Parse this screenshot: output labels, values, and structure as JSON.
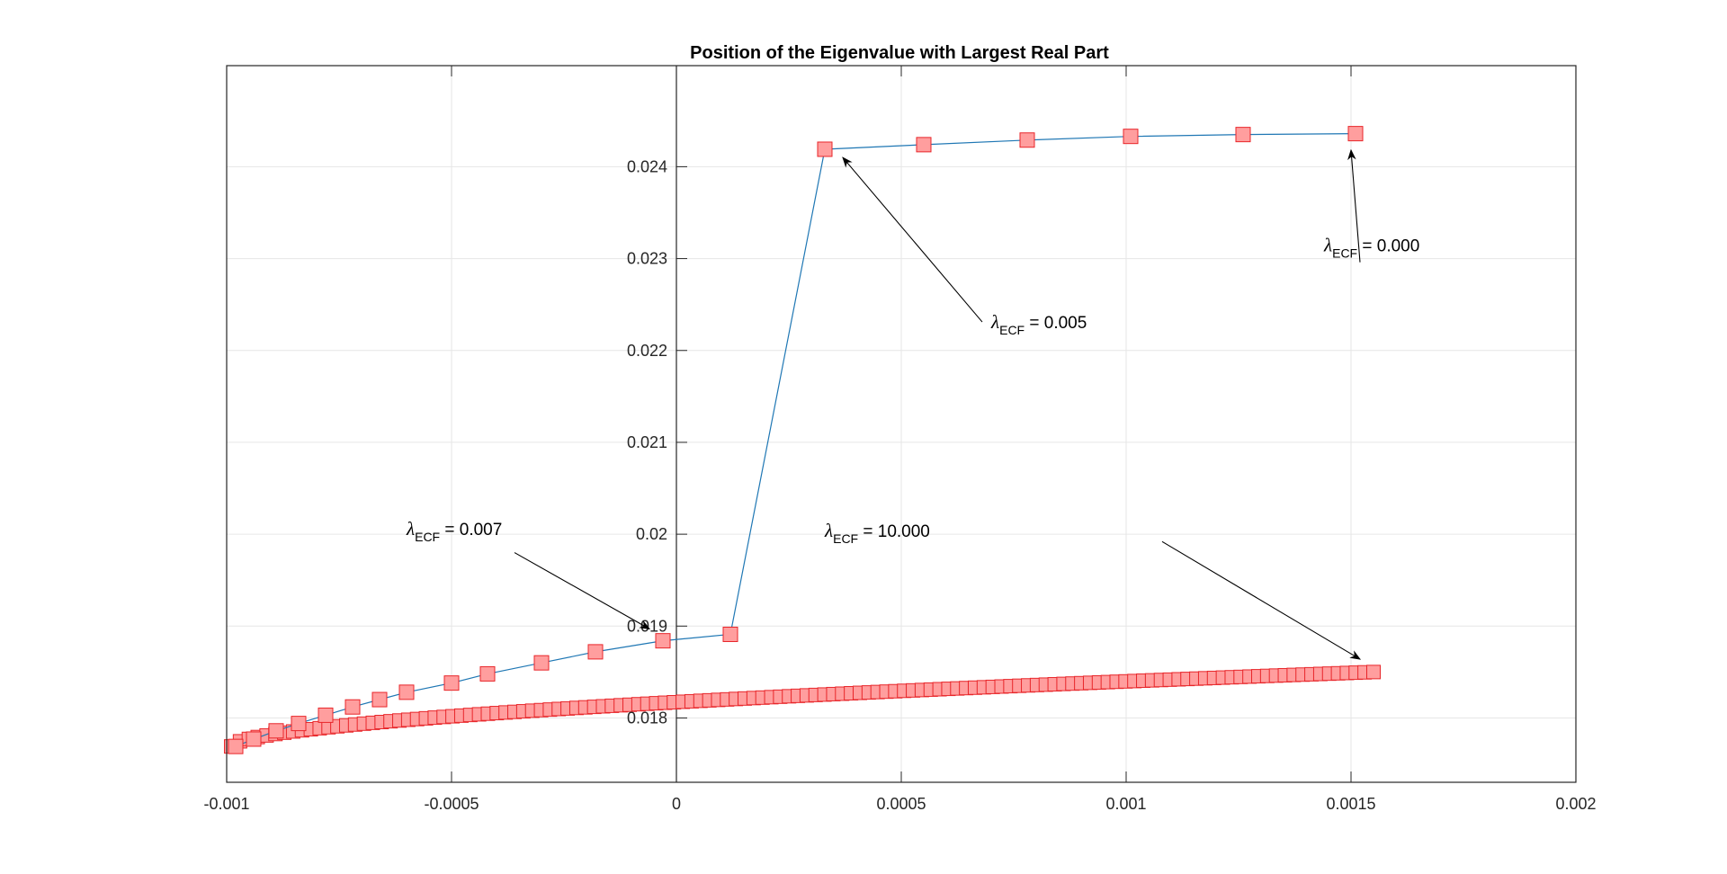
{
  "chart_data": {
    "type": "scatter",
    "title": "Position of the Eigenvalue with Largest Real Part",
    "xlabel": "",
    "ylabel": "",
    "xlim": [
      -0.001,
      0.002
    ],
    "ylim": [
      0.0173,
      0.0251
    ],
    "grid": true,
    "x_ticks": [
      -0.001,
      -0.0005,
      0,
      0.0005,
      0.001,
      0.0015,
      0.002
    ],
    "x_tick_labels": [
      "-0.001",
      "-0.0005",
      "0",
      "0.0005",
      "0.001",
      "0.0015",
      "0.002"
    ],
    "y_ticks": [
      0.018,
      0.019,
      0.02,
      0.021,
      0.022,
      0.023,
      0.024
    ],
    "y_tick_labels": [
      "0.018",
      "0.019",
      "0.02",
      "0.021",
      "0.022",
      "0.023",
      "0.024"
    ],
    "colors": {
      "marker_face": "#ff9e9e",
      "marker_edge": "#e8262a",
      "line": "#1f77b4",
      "axes": "#262626",
      "grid": "#e6e6e6"
    },
    "series": [
      {
        "values": [
          [
            -0.00098,
            0.01769
          ],
          [
            -0.00094,
            0.01777
          ],
          [
            -0.00089,
            0.01786
          ],
          [
            -0.00084,
            0.01794
          ],
          [
            -0.00078,
            0.01803
          ],
          [
            -0.00072,
            0.01812
          ],
          [
            -0.00066,
            0.0182
          ],
          [
            -0.0006,
            0.01828
          ],
          [
            -0.0005,
            0.01838
          ],
          [
            -0.00042,
            0.01848
          ],
          [
            -0.0003,
            0.0186
          ],
          [
            -0.00018,
            0.01872
          ],
          [
            -3e-05,
            0.01884
          ],
          [
            0.00012,
            0.01891
          ],
          [
            0.00033,
            0.02419
          ],
          [
            0.00055,
            0.02424
          ],
          [
            0.00078,
            0.02429
          ],
          [
            0.00101,
            0.02433
          ],
          [
            0.00126,
            0.02435
          ],
          [
            0.00151,
            0.02436
          ]
        ]
      },
      {
        "x_range": [
          -0.00099,
          0.00155
        ],
        "y_fit": {
          "low": 0.01769,
          "high": 0.0185,
          "curvature": 0.55
        },
        "count": 130
      }
    ],
    "annotations": [
      {
        "symbol": "λ",
        "sub": "ECF",
        "text": " = 0.000",
        "text_at": [
          0.00144,
          0.02308
        ],
        "arrow_from": [
          0.00152,
          0.02296
        ],
        "arrow_to": [
          0.0015,
          0.02418
        ]
      },
      {
        "symbol": "λ",
        "sub": "ECF",
        "text": " = 0.005",
        "text_at": [
          0.0007,
          0.02224
        ],
        "arrow_from": [
          0.00068,
          0.02231
        ],
        "arrow_to": [
          0.00037,
          0.0241
        ]
      },
      {
        "symbol": "λ",
        "sub": "ECF",
        "text": " = 0.007",
        "text_at": [
          -0.0006,
          0.01999
        ],
        "arrow_from": [
          -0.00036,
          0.0198
        ],
        "arrow_to": [
          -6e-05,
          0.01897
        ]
      },
      {
        "symbol": "λ",
        "sub": "ECF",
        "text": " = 10.000",
        "text_at": [
          0.00033,
          0.01997
        ],
        "arrow_from": [
          0.00108,
          0.01992
        ],
        "arrow_to": [
          0.00152,
          0.01864
        ]
      }
    ]
  }
}
